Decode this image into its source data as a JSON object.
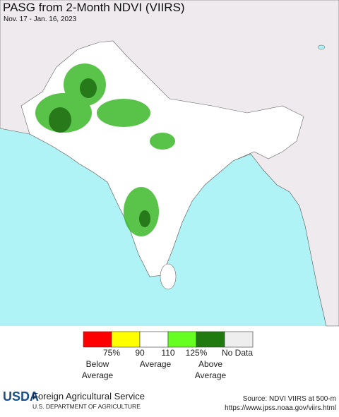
{
  "header": {
    "title": "PASG from 2-Month NDVI (VIIRS)",
    "subtitle": "Nov. 17 - Jan. 16, 2023"
  },
  "legend": {
    "boxes": [
      {
        "color": "#ff0000"
      },
      {
        "color": "#ffff00"
      },
      {
        "color": "#ffffff"
      },
      {
        "color": "#66ff22"
      },
      {
        "color": "#217a10"
      },
      {
        "color": "#eeeeee"
      }
    ],
    "ticks": [
      "75%",
      "90",
      "110",
      "125%",
      "No Data"
    ],
    "groups": [
      [
        "Below",
        "Average"
      ],
      [
        "Average"
      ],
      [
        "Above",
        "Average"
      ]
    ]
  },
  "footer": {
    "logo": "USDA",
    "agency": "Foreign Agricultural Service",
    "department": "U.S. DEPARTMENT OF AGRICULTURE",
    "source": "Source: NDVI VIIRS at 500-m",
    "url": "https://www.jpss.noaa.gov/viirs.html"
  }
}
